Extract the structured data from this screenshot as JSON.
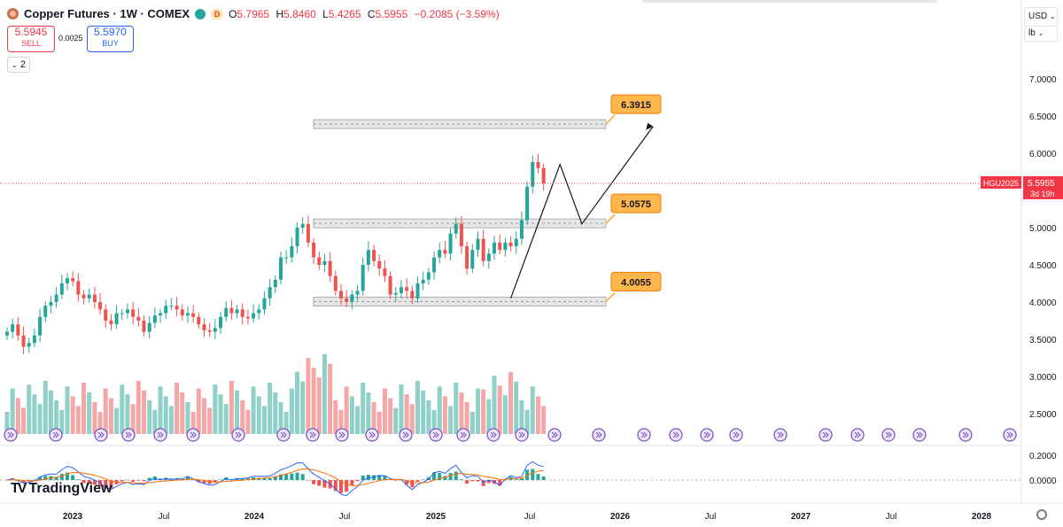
{
  "header": {
    "title": "Copper Futures · 1W · COMEX",
    "delay_badge": "D",
    "ohlc": [
      {
        "label": "O",
        "value": "5.7965"
      },
      {
        "label": "H",
        "value": "5.8460"
      },
      {
        "label": "L",
        "value": "5.4265"
      },
      {
        "label": "C",
        "value": "5.5955"
      }
    ],
    "change": "−0.2085 (−3.59%)"
  },
  "trade": {
    "sell_price": "5.5945",
    "sell_label": "SELL",
    "buy_price": "5.5970",
    "buy_label": "BUY",
    "spread": "0.0025"
  },
  "indicators_toggle": "2",
  "axis_controls": {
    "currency": "USD",
    "unit": "lb"
  },
  "brand": "TradingView",
  "colors": {
    "up": "#26a69a",
    "down": "#ef5350",
    "vol_up": "#8fd1c9",
    "vol_down": "#f4a7a6",
    "macd": "#2962ff",
    "signal": "#ff6d00",
    "label": "#ffb74d",
    "price_line": "#f23645"
  },
  "chart_data": {
    "type": "candlestick",
    "symbol": "HGU2025",
    "last_price": "5.5955",
    "countdown": "3d 19h",
    "price_axis": {
      "ticks": [
        "7.0000",
        "6.5000",
        "6.0000",
        "5.5000",
        "5.0000",
        "4.5000",
        "4.0000",
        "3.5000",
        "3.0000",
        "2.5000"
      ],
      "range": [
        2.2,
        7.3
      ]
    },
    "macd_axis": {
      "ticks": [
        "0.2000",
        "0.0000"
      ]
    },
    "time_axis": {
      "ticks": [
        "2023",
        "Jul",
        "2024",
        "Jul",
        "2025",
        "Jul",
        "2026",
        "Jul",
        "2027",
        "Jul",
        "2028"
      ]
    },
    "close_path": [
      3.6,
      3.7,
      3.55,
      3.4,
      3.45,
      3.55,
      3.8,
      3.95,
      4.0,
      4.1,
      4.25,
      4.32,
      4.28,
      4.1,
      4.05,
      4.1,
      4.0,
      3.9,
      3.75,
      3.7,
      3.85,
      3.85,
      3.9,
      3.8,
      3.75,
      3.6,
      3.72,
      3.82,
      3.85,
      3.95,
      3.95,
      3.9,
      3.82,
      3.85,
      3.8,
      3.7,
      3.62,
      3.6,
      3.65,
      3.8,
      3.92,
      3.85,
      3.9,
      3.8,
      3.78,
      3.85,
      3.9,
      4.05,
      4.2,
      4.3,
      4.6,
      4.6,
      4.75,
      5.0,
      5.05,
      4.8,
      4.6,
      4.5,
      4.55,
      4.35,
      4.15,
      4.05,
      4.0,
      4.1,
      4.15,
      4.5,
      4.7,
      4.55,
      4.45,
      4.35,
      4.1,
      4.12,
      4.2,
      4.15,
      4.05,
      4.25,
      4.3,
      4.4,
      4.6,
      4.7,
      4.65,
      4.92,
      5.05,
      4.75,
      4.45,
      4.7,
      4.85,
      4.55,
      4.65,
      4.8,
      4.7,
      4.8,
      4.75,
      4.85,
      5.1,
      5.55,
      5.88,
      5.8,
      5.5955
    ],
    "levels": [
      {
        "label": "6.3915",
        "value": 6.3915
      },
      {
        "label": "5.0575",
        "value": 5.0575
      },
      {
        "label": "4.0055",
        "value": 4.0055
      }
    ],
    "projection": [
      {
        "week": 92,
        "value": 4.05
      },
      {
        "week": 101,
        "value": 5.85
      },
      {
        "week": 105,
        "value": 5.05
      },
      {
        "week": 118,
        "value": 6.36
      }
    ],
    "volume_note": "relative volume bars beneath price",
    "macd": {
      "series": [
        "MACD",
        "Signal",
        "Histogram"
      ]
    }
  }
}
